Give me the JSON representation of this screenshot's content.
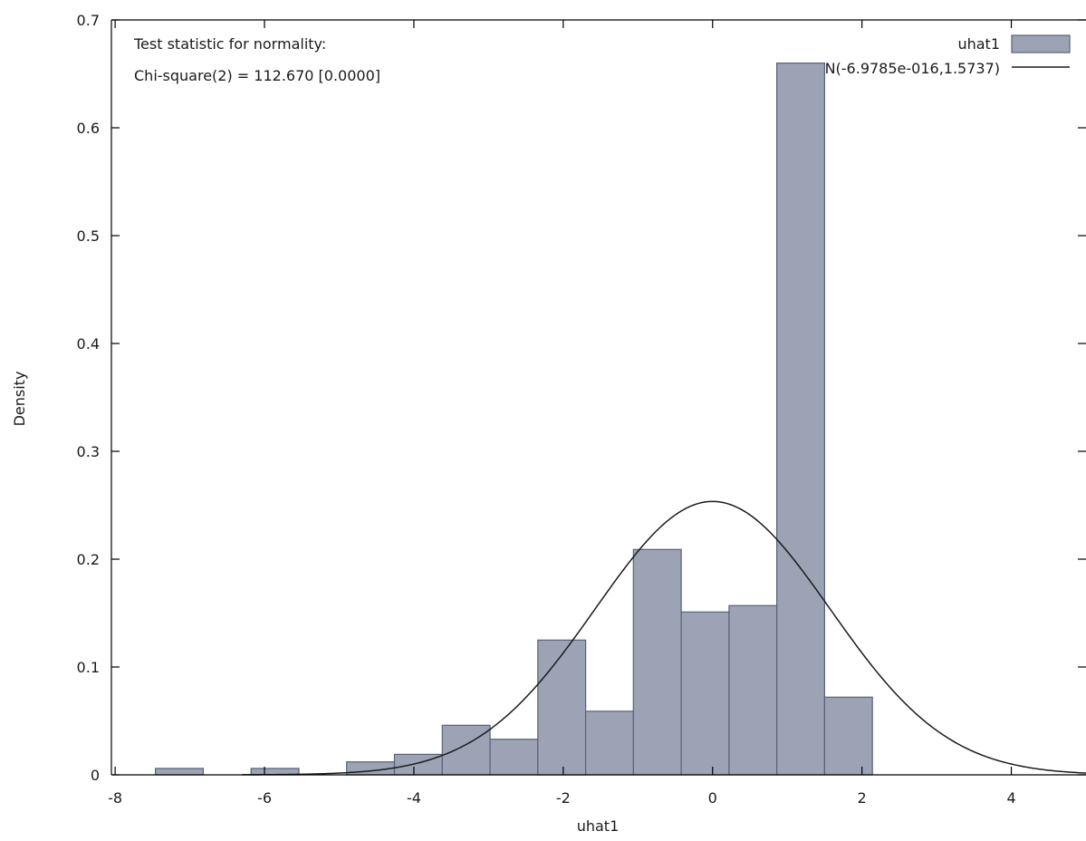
{
  "chart_data": {
    "type": "bar",
    "title": "",
    "xlabel": "uhat1",
    "ylabel": "Density",
    "xlim": [
      -8.05,
      5
    ],
    "ylim": [
      0,
      0.7
    ],
    "x_ticks": [
      "-8",
      "-6",
      "-4",
      "-2",
      "0",
      "2",
      "4"
    ],
    "x_tick_values": [
      -8,
      -6,
      -4,
      -2,
      0,
      2,
      4
    ],
    "y_ticks": [
      "0",
      "0.1",
      "0.2",
      "0.3",
      "0.4",
      "0.5",
      "0.6",
      "0.7"
    ],
    "y_tick_values": [
      0,
      0.1,
      0.2,
      0.3,
      0.4,
      0.5,
      0.6,
      0.7
    ],
    "grid": false,
    "legend_position": "top-right",
    "annotation_lines": [
      "Test statistic for normality:",
      "Chi-square(2) = 112.670 [0.0000]"
    ],
    "series": [
      {
        "name": "uhat1",
        "kind": "histogram",
        "color": "#9ca3b5",
        "edge_color": "#5a6178",
        "bin_width": 0.64,
        "bin_centers": [
          -7.14,
          -5.86,
          -4.58,
          -3.94,
          -3.3,
          -2.66,
          -2.02,
          -1.38,
          -0.74,
          -0.1,
          0.54,
          1.18,
          1.82
        ],
        "values": [
          0.006,
          0.006,
          0.012,
          0.019,
          0.046,
          0.033,
          0.125,
          0.059,
          0.209,
          0.151,
          0.157,
          0.66,
          0.072
        ]
      },
      {
        "name": "N(-6.9785e-016,1.5737)",
        "kind": "normal_curve",
        "color": "#1a1a1a",
        "mean": -6.9785e-16,
        "sd": 1.5737
      }
    ]
  }
}
